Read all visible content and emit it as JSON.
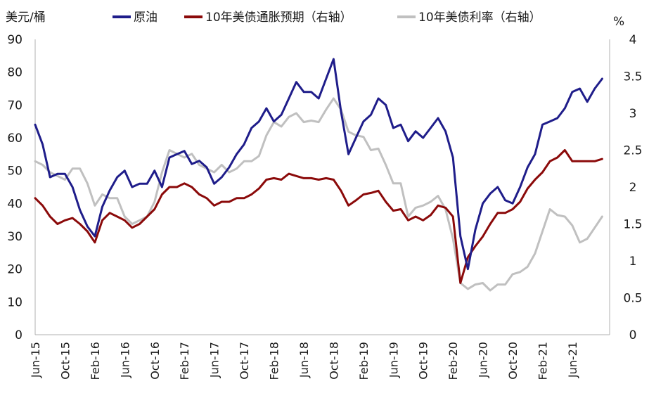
{
  "chart_data": {
    "type": "line",
    "y_left_unit": "美元/桶",
    "y_right_unit": "%",
    "y_left": {
      "min": 0,
      "max": 90,
      "ticks": [
        "0",
        "10",
        "20",
        "30",
        "40",
        "50",
        "60",
        "70",
        "80",
        "90"
      ]
    },
    "y_right": {
      "min": 0,
      "max": 4,
      "ticks": [
        "0",
        "0.5",
        "1",
        "1.5",
        "2",
        "2.5",
        "3",
        "3.5",
        "4"
      ]
    },
    "x_ticks": [
      "Jun-15",
      "Oct-15",
      "Feb-16",
      "Jun-16",
      "Oct-16",
      "Feb-17",
      "Jun-17",
      "Oct-17",
      "Feb-18",
      "Jun-18",
      "Oct-18",
      "Feb-19",
      "Jun-19",
      "Oct-19",
      "Feb-20",
      "Jun-20",
      "Oct-20",
      "Feb-21",
      "Jun-21"
    ],
    "x_start": "2015-06",
    "legend_position": "top",
    "grid": false,
    "series": [
      {
        "name": "原油",
        "axis": "left",
        "color": "#1f1d8a",
        "points": [
          [
            "2015-06",
            64
          ],
          [
            "2015-07",
            58
          ],
          [
            "2015-08",
            48
          ],
          [
            "2015-09",
            49
          ],
          [
            "2015-10",
            49
          ],
          [
            "2015-11",
            45
          ],
          [
            "2015-12",
            38
          ],
          [
            "2016-01",
            33
          ],
          [
            "2016-02",
            30
          ],
          [
            "2016-03",
            39
          ],
          [
            "2016-04",
            44
          ],
          [
            "2016-05",
            48
          ],
          [
            "2016-06",
            50
          ],
          [
            "2016-07",
            45
          ],
          [
            "2016-08",
            46
          ],
          [
            "2016-09",
            46
          ],
          [
            "2016-10",
            50
          ],
          [
            "2016-11",
            45
          ],
          [
            "2016-12",
            54
          ],
          [
            "2017-01",
            55
          ],
          [
            "2017-02",
            56
          ],
          [
            "2017-03",
            52
          ],
          [
            "2017-04",
            53
          ],
          [
            "2017-05",
            51
          ],
          [
            "2017-06",
            46
          ],
          [
            "2017-07",
            48
          ],
          [
            "2017-08",
            51
          ],
          [
            "2017-09",
            55
          ],
          [
            "2017-10",
            58
          ],
          [
            "2017-11",
            63
          ],
          [
            "2017-12",
            65
          ],
          [
            "2018-01",
            69
          ],
          [
            "2018-02",
            65
          ],
          [
            "2018-03",
            67
          ],
          [
            "2018-04",
            72
          ],
          [
            "2018-05",
            77
          ],
          [
            "2018-06",
            74
          ],
          [
            "2018-07",
            74
          ],
          [
            "2018-08",
            72
          ],
          [
            "2018-09",
            78
          ],
          [
            "2018-10",
            84
          ],
          [
            "2018-11",
            68
          ],
          [
            "2018-12",
            55
          ],
          [
            "2019-01",
            60
          ],
          [
            "2019-02",
            65
          ],
          [
            "2019-03",
            67
          ],
          [
            "2019-04",
            72
          ],
          [
            "2019-05",
            70
          ],
          [
            "2019-06",
            63
          ],
          [
            "2019-07",
            64
          ],
          [
            "2019-08",
            59
          ],
          [
            "2019-09",
            62
          ],
          [
            "2019-10",
            60
          ],
          [
            "2019-11",
            63
          ],
          [
            "2019-12",
            66
          ],
          [
            "2020-01",
            62
          ],
          [
            "2020-02",
            54
          ],
          [
            "2020-03",
            30
          ],
          [
            "2020-04",
            20
          ],
          [
            "2020-05",
            32
          ],
          [
            "2020-06",
            40
          ],
          [
            "2020-07",
            43
          ],
          [
            "2020-08",
            45
          ],
          [
            "2020-09",
            41
          ],
          [
            "2020-10",
            40
          ],
          [
            "2020-11",
            45
          ],
          [
            "2020-12",
            51
          ],
          [
            "2021-01",
            55
          ],
          [
            "2021-02",
            64
          ],
          [
            "2021-03",
            65
          ],
          [
            "2021-04",
            66
          ],
          [
            "2021-05",
            69
          ],
          [
            "2021-06",
            74
          ],
          [
            "2021-07",
            75
          ],
          [
            "2021-08",
            71
          ],
          [
            "2021-09",
            75
          ],
          [
            "2021-10",
            78
          ]
        ]
      },
      {
        "name": "10年美债通胀预期（右轴）",
        "axis": "right",
        "color": "#8b0a0a",
        "points": [
          [
            "2015-06",
            1.85
          ],
          [
            "2015-07",
            1.75
          ],
          [
            "2015-08",
            1.6
          ],
          [
            "2015-09",
            1.5
          ],
          [
            "2015-10",
            1.55
          ],
          [
            "2015-11",
            1.58
          ],
          [
            "2015-12",
            1.5
          ],
          [
            "2016-01",
            1.4
          ],
          [
            "2016-02",
            1.25
          ],
          [
            "2016-03",
            1.55
          ],
          [
            "2016-04",
            1.65
          ],
          [
            "2016-05",
            1.6
          ],
          [
            "2016-06",
            1.55
          ],
          [
            "2016-07",
            1.45
          ],
          [
            "2016-08",
            1.5
          ],
          [
            "2016-09",
            1.6
          ],
          [
            "2016-10",
            1.7
          ],
          [
            "2016-11",
            1.9
          ],
          [
            "2016-12",
            2.0
          ],
          [
            "2017-01",
            2.0
          ],
          [
            "2017-02",
            2.05
          ],
          [
            "2017-03",
            2.0
          ],
          [
            "2017-04",
            1.9
          ],
          [
            "2017-05",
            1.85
          ],
          [
            "2017-06",
            1.75
          ],
          [
            "2017-07",
            1.8
          ],
          [
            "2017-08",
            1.8
          ],
          [
            "2017-09",
            1.85
          ],
          [
            "2017-10",
            1.85
          ],
          [
            "2017-11",
            1.9
          ],
          [
            "2017-12",
            1.98
          ],
          [
            "2018-01",
            2.1
          ],
          [
            "2018-02",
            2.12
          ],
          [
            "2018-03",
            2.1
          ],
          [
            "2018-04",
            2.18
          ],
          [
            "2018-05",
            2.15
          ],
          [
            "2018-06",
            2.12
          ],
          [
            "2018-07",
            2.12
          ],
          [
            "2018-08",
            2.1
          ],
          [
            "2018-09",
            2.12
          ],
          [
            "2018-10",
            2.1
          ],
          [
            "2018-11",
            1.95
          ],
          [
            "2018-12",
            1.75
          ],
          [
            "2019-01",
            1.82
          ],
          [
            "2019-02",
            1.9
          ],
          [
            "2019-03",
            1.92
          ],
          [
            "2019-04",
            1.95
          ],
          [
            "2019-05",
            1.8
          ],
          [
            "2019-06",
            1.68
          ],
          [
            "2019-07",
            1.7
          ],
          [
            "2019-08",
            1.55
          ],
          [
            "2019-09",
            1.6
          ],
          [
            "2019-10",
            1.55
          ],
          [
            "2019-11",
            1.62
          ],
          [
            "2019-12",
            1.75
          ],
          [
            "2020-01",
            1.72
          ],
          [
            "2020-02",
            1.6
          ],
          [
            "2020-03",
            0.7
          ],
          [
            "2020-04",
            1.05
          ],
          [
            "2020-05",
            1.2
          ],
          [
            "2020-06",
            1.33
          ],
          [
            "2020-07",
            1.5
          ],
          [
            "2020-08",
            1.65
          ],
          [
            "2020-09",
            1.65
          ],
          [
            "2020-10",
            1.7
          ],
          [
            "2020-11",
            1.8
          ],
          [
            "2020-12",
            1.98
          ],
          [
            "2021-01",
            2.1
          ],
          [
            "2021-02",
            2.2
          ],
          [
            "2021-03",
            2.35
          ],
          [
            "2021-04",
            2.4
          ],
          [
            "2021-05",
            2.5
          ],
          [
            "2021-06",
            2.35
          ],
          [
            "2021-07",
            2.35
          ],
          [
            "2021-08",
            2.35
          ],
          [
            "2021-09",
            2.35
          ],
          [
            "2021-10",
            2.38
          ]
        ]
      },
      {
        "name": "10年美债利率（右轴）",
        "axis": "right",
        "color": "#c0c0c0",
        "points": [
          [
            "2015-06",
            2.35
          ],
          [
            "2015-07",
            2.3
          ],
          [
            "2015-08",
            2.2
          ],
          [
            "2015-09",
            2.15
          ],
          [
            "2015-10",
            2.1
          ],
          [
            "2015-11",
            2.25
          ],
          [
            "2015-12",
            2.25
          ],
          [
            "2016-01",
            2.05
          ],
          [
            "2016-02",
            1.75
          ],
          [
            "2016-03",
            1.9
          ],
          [
            "2016-04",
            1.85
          ],
          [
            "2016-05",
            1.85
          ],
          [
            "2016-06",
            1.6
          ],
          [
            "2016-07",
            1.5
          ],
          [
            "2016-08",
            1.55
          ],
          [
            "2016-09",
            1.6
          ],
          [
            "2016-10",
            1.8
          ],
          [
            "2016-11",
            2.2
          ],
          [
            "2016-12",
            2.5
          ],
          [
            "2017-01",
            2.45
          ],
          [
            "2017-02",
            2.4
          ],
          [
            "2017-03",
            2.45
          ],
          [
            "2017-04",
            2.3
          ],
          [
            "2017-05",
            2.25
          ],
          [
            "2017-06",
            2.2
          ],
          [
            "2017-07",
            2.3
          ],
          [
            "2017-08",
            2.2
          ],
          [
            "2017-09",
            2.25
          ],
          [
            "2017-10",
            2.35
          ],
          [
            "2017-11",
            2.35
          ],
          [
            "2017-12",
            2.42
          ],
          [
            "2018-01",
            2.7
          ],
          [
            "2018-02",
            2.88
          ],
          [
            "2018-03",
            2.82
          ],
          [
            "2018-04",
            2.95
          ],
          [
            "2018-05",
            3.0
          ],
          [
            "2018-06",
            2.88
          ],
          [
            "2018-07",
            2.9
          ],
          [
            "2018-08",
            2.88
          ],
          [
            "2018-09",
            3.05
          ],
          [
            "2018-10",
            3.2
          ],
          [
            "2018-11",
            3.05
          ],
          [
            "2018-12",
            2.75
          ],
          [
            "2019-01",
            2.7
          ],
          [
            "2019-02",
            2.68
          ],
          [
            "2019-03",
            2.5
          ],
          [
            "2019-04",
            2.52
          ],
          [
            "2019-05",
            2.3
          ],
          [
            "2019-06",
            2.05
          ],
          [
            "2019-07",
            2.05
          ],
          [
            "2019-08",
            1.6
          ],
          [
            "2019-09",
            1.72
          ],
          [
            "2019-10",
            1.75
          ],
          [
            "2019-11",
            1.8
          ],
          [
            "2019-12",
            1.88
          ],
          [
            "2020-01",
            1.7
          ],
          [
            "2020-02",
            1.3
          ],
          [
            "2020-03",
            0.7
          ],
          [
            "2020-04",
            0.62
          ],
          [
            "2020-05",
            0.68
          ],
          [
            "2020-06",
            0.7
          ],
          [
            "2020-07",
            0.6
          ],
          [
            "2020-08",
            0.68
          ],
          [
            "2020-09",
            0.68
          ],
          [
            "2020-10",
            0.82
          ],
          [
            "2020-11",
            0.85
          ],
          [
            "2020-12",
            0.92
          ],
          [
            "2021-01",
            1.1
          ],
          [
            "2021-02",
            1.4
          ],
          [
            "2021-03",
            1.7
          ],
          [
            "2021-04",
            1.62
          ],
          [
            "2021-05",
            1.6
          ],
          [
            "2021-06",
            1.48
          ],
          [
            "2021-07",
            1.25
          ],
          [
            "2021-08",
            1.3
          ],
          [
            "2021-09",
            1.45
          ],
          [
            "2021-10",
            1.6
          ]
        ]
      }
    ]
  }
}
